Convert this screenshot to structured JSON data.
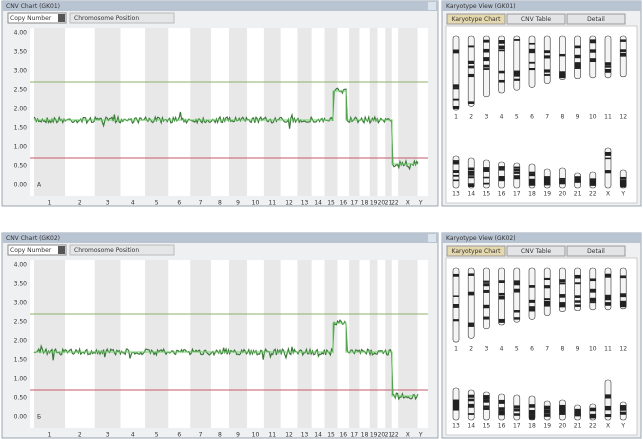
{
  "panels": [
    {
      "label": "А",
      "cnv_title": "CNV Chart (GK01)",
      "dropdown": "Copy Number",
      "dropdown2": "Chromosome Position",
      "y_ticks": [
        "4.00",
        "3.50",
        "3.00",
        "2.50",
        "2.00",
        "1.50",
        "1.00",
        "0.50",
        "0.00"
      ],
      "x_ticks": [
        "1",
        "2",
        "3",
        "4",
        "5",
        "6",
        "7",
        "8",
        "9",
        "10",
        "11",
        "12",
        "13",
        "14",
        "15",
        "16",
        "17",
        "18",
        "19",
        "20",
        "21",
        "22",
        "X",
        "Y"
      ],
      "karyotype_title": "Karyotype View (GK01)",
      "tabs": [
        "Karyotype Chart",
        "CNV Table",
        "Detail"
      ],
      "chromosomes": [
        "1",
        "2",
        "3",
        "4",
        "5",
        "6",
        "7",
        "8",
        "9",
        "10",
        "11",
        "12",
        "13",
        "14",
        "15",
        "16",
        "17",
        "18",
        "19",
        "20",
        "21",
        "22",
        "X",
        "Y"
      ]
    },
    {
      "label": "Б",
      "cnv_title": "CNV Chart (GK02)",
      "dropdown": "Copy Number",
      "dropdown2": "Chromosome Position",
      "y_ticks": [
        "4.00",
        "3.50",
        "3.00",
        "2.50",
        "2.00",
        "1.50",
        "1.00",
        "0.50",
        "0.00"
      ],
      "x_ticks": [
        "1",
        "2",
        "3",
        "4",
        "5",
        "6",
        "7",
        "8",
        "9",
        "10",
        "11",
        "12",
        "13",
        "14",
        "15",
        "16",
        "17",
        "18",
        "19",
        "20",
        "21",
        "22",
        "X",
        "Y"
      ],
      "karyotype_title": "Karyotype View (GK02)",
      "tabs": [
        "Karyotype Chart",
        "CNV Table",
        "Detail"
      ],
      "chromosomes": [
        "1",
        "2",
        "3",
        "4",
        "5",
        "6",
        "7",
        "8",
        "9",
        "10",
        "11",
        "12",
        "13",
        "14",
        "15",
        "16",
        "17",
        "18",
        "19",
        "20",
        "21",
        "22",
        "X",
        "Y"
      ]
    }
  ]
}
